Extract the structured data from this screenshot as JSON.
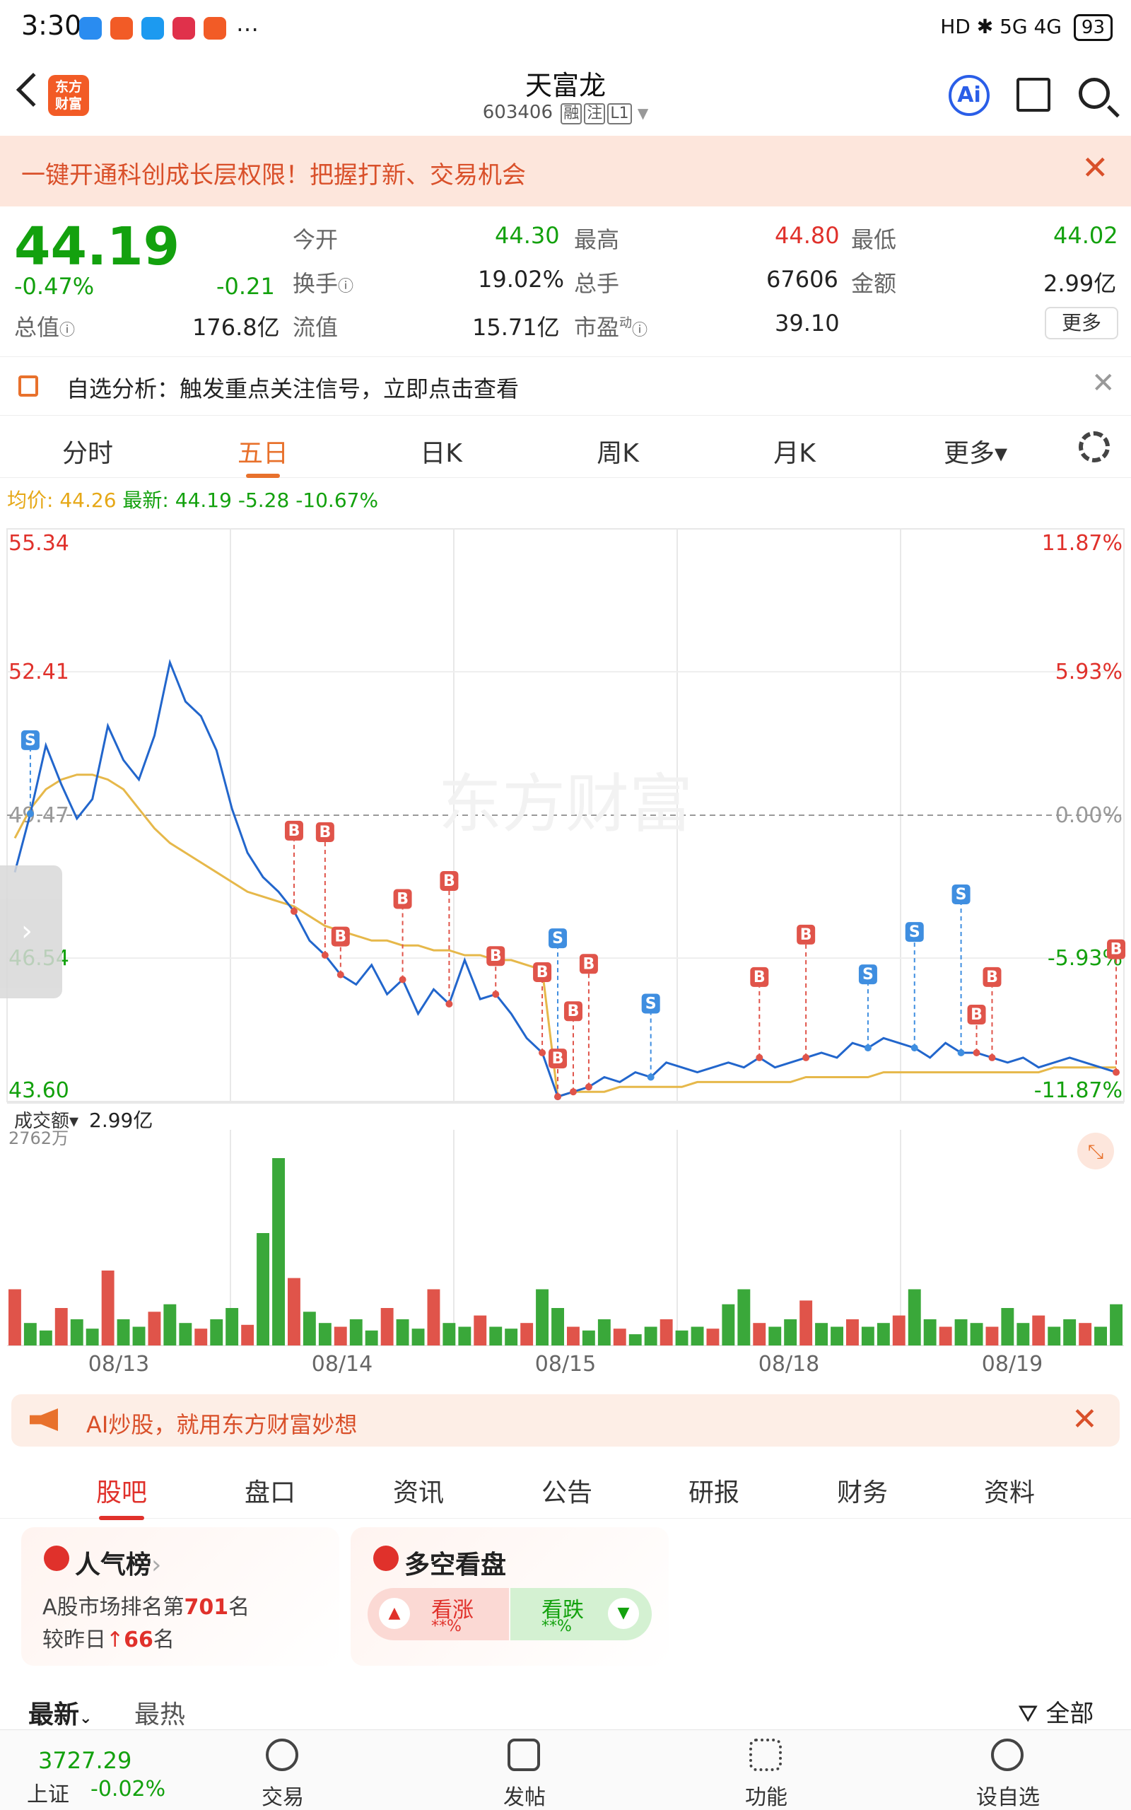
{
  "status_bar": {
    "time": "3:30",
    "network": "HD ✱ 5G 4G",
    "battery": "93"
  },
  "header": {
    "logo_text_1": "东方",
    "logo_text_2": "财富",
    "name": "天富龙",
    "code": "603406",
    "tags": [
      "融",
      "注",
      "L1"
    ],
    "ai_label": "Ai"
  },
  "promo": {
    "text": "一键开通科创成长层权限！把握打新、交易机会"
  },
  "quote": {
    "price": "44.19",
    "change_pct": "-0.47%",
    "change": "-0.21",
    "market_cap_label": "总值",
    "market_cap": "176.8亿",
    "open_label": "今开",
    "open": "44.30",
    "high_label": "最高",
    "high": "44.80",
    "low_label": "最低",
    "low": "44.02",
    "turnover_label": "换手",
    "turnover": "19.02%",
    "volume_label": "总手",
    "volume": "67606",
    "amount_label": "金额",
    "amount": "2.99亿",
    "float_cap_label": "流值",
    "float_cap": "15.71亿",
    "pe_label": "市盈",
    "pe_sup": "动",
    "pe": "39.10",
    "more": "更多"
  },
  "analysis": {
    "text": "自选分析：触发重点关注信号，立即点击查看"
  },
  "chart_tabs": {
    "items": [
      "分时",
      "五日",
      "日K",
      "周K",
      "月K",
      "更多▾"
    ],
    "active_index": 1
  },
  "avg_info": {
    "avg_label": "均价:",
    "avg": "44.26",
    "latest_label": "最新:",
    "latest": "44.19",
    "chg": "-5.28",
    "pct": "-10.67%"
  },
  "chart_data": {
    "type": "line",
    "price_axis": [
      "55.34",
      "52.41",
      "49.47",
      "46.54",
      "43.60"
    ],
    "pct_axis": [
      "11.87%",
      "5.93%",
      "0.00%",
      "-5.93%",
      "-11.87%"
    ],
    "ylim": [
      43.6,
      55.34
    ],
    "days": [
      "08/13",
      "08/14",
      "08/15",
      "08/18",
      "08/19"
    ],
    "reference_price": 49.47,
    "series": [
      {
        "values": [
          48.3,
          49.5,
          50.9,
          50.1,
          49.4,
          49.8,
          51.3,
          50.6,
          50.2,
          51.1,
          52.6,
          51.8,
          51.5,
          50.8,
          49.6,
          48.7,
          48.2,
          47.9,
          47.5,
          46.9,
          46.6,
          46.2,
          46.0,
          46.4,
          45.8,
          46.1,
          45.4,
          45.9,
          45.6,
          46.5,
          45.7,
          45.8,
          45.4,
          44.9,
          44.6,
          43.7,
          43.8,
          43.9,
          44.1,
          44.0,
          44.2,
          44.1,
          44.4,
          44.3,
          44.2,
          44.3,
          44.4,
          44.3,
          44.5,
          44.3,
          44.4,
          44.5,
          44.6,
          44.5,
          44.8,
          44.7,
          44.9,
          44.8,
          44.7,
          44.5,
          44.8,
          44.6,
          44.6,
          44.5,
          44.4,
          44.5,
          44.3,
          44.4,
          44.5,
          44.4,
          44.3,
          44.2
        ]
      },
      {
        "values": [
          49.0,
          49.6,
          50.0,
          50.2,
          50.3,
          50.3,
          50.2,
          50.0,
          49.6,
          49.2,
          48.9,
          48.7,
          48.5,
          48.3,
          48.1,
          47.9,
          47.8,
          47.7,
          47.6,
          47.4,
          47.2,
          47.1,
          47.0,
          46.9,
          46.9,
          46.8,
          46.8,
          46.7,
          46.7,
          46.6,
          46.6,
          46.5,
          46.5,
          46.4,
          46.3,
          43.7,
          43.8,
          43.8,
          43.8,
          43.9,
          43.9,
          43.9,
          43.9,
          43.9,
          44.0,
          44.0,
          44.0,
          44.0,
          44.0,
          44.0,
          44.0,
          44.1,
          44.1,
          44.1,
          44.1,
          44.1,
          44.2,
          44.2,
          44.2,
          44.2,
          44.2,
          44.2,
          44.2,
          44.2,
          44.2,
          44.2,
          44.2,
          44.3,
          44.3,
          44.3,
          44.3,
          44.3
        ]
      }
    ],
    "signals": [
      {
        "type": "S",
        "index": 1
      },
      {
        "type": "B",
        "index": 18
      },
      {
        "type": "B",
        "index": 20
      },
      {
        "type": "B",
        "index": 21
      },
      {
        "type": "B",
        "index": 25
      },
      {
        "type": "B",
        "index": 28
      },
      {
        "type": "B",
        "index": 31
      },
      {
        "type": "B",
        "index": 34
      },
      {
        "type": "S",
        "index": 35
      },
      {
        "type": "B",
        "index": 35
      },
      {
        "type": "B",
        "index": 36
      },
      {
        "type": "B",
        "index": 37
      },
      {
        "type": "S",
        "index": 41
      },
      {
        "type": "B",
        "index": 48
      },
      {
        "type": "B",
        "index": 51
      },
      {
        "type": "S",
        "index": 55
      },
      {
        "type": "S",
        "index": 58
      },
      {
        "type": "S",
        "index": 61
      },
      {
        "type": "B",
        "index": 62
      },
      {
        "type": "B",
        "index": 63
      },
      {
        "type": "B",
        "index": 71
      }
    ],
    "volume_label": "成交额▾",
    "volume_total": "2.99亿",
    "volume_max": "2762万",
    "volume": [
      30,
      12,
      8,
      20,
      14,
      9,
      40,
      14,
      10,
      18,
      22,
      12,
      9,
      14,
      20,
      11,
      60,
      100,
      36,
      18,
      12,
      10,
      14,
      8,
      20,
      14,
      9,
      30,
      12,
      10,
      16,
      10,
      9,
      12,
      30,
      20,
      10,
      8,
      14,
      9,
      6,
      10,
      14,
      8,
      10,
      9,
      22,
      30,
      12,
      10,
      14,
      24,
      12,
      10,
      14,
      10,
      12,
      16,
      30,
      14,
      10,
      14,
      12,
      10,
      20,
      12,
      16,
      10,
      14,
      12,
      10,
      22
    ]
  },
  "ai_strip": {
    "text": "AI炒股，就用东方财富妙想"
  },
  "sub_tabs": {
    "items": [
      "股吧",
      "盘口",
      "资讯",
      "公告",
      "研报",
      "财务",
      "资料"
    ],
    "active_index": 0
  },
  "card_rank": {
    "title": "人气榜",
    "line1_a": "A股市场排名第",
    "line1_num": "701",
    "line1_b": "名",
    "line2_a": "较昨日",
    "line2_num": "66",
    "line2_b": "名"
  },
  "card_vs": {
    "title": "多空看盘",
    "bull": "看涨",
    "bull_val": "**%",
    "bear": "看跌",
    "bear_val": "**%"
  },
  "feed": {
    "latest": "最新",
    "hot": "最热",
    "filter": "全部"
  },
  "bottom_nav": {
    "index_value": "3727.29",
    "index_name": "上证",
    "index_change": "-0.02%",
    "items": [
      "交易",
      "发帖",
      "功能",
      "设自选"
    ]
  }
}
